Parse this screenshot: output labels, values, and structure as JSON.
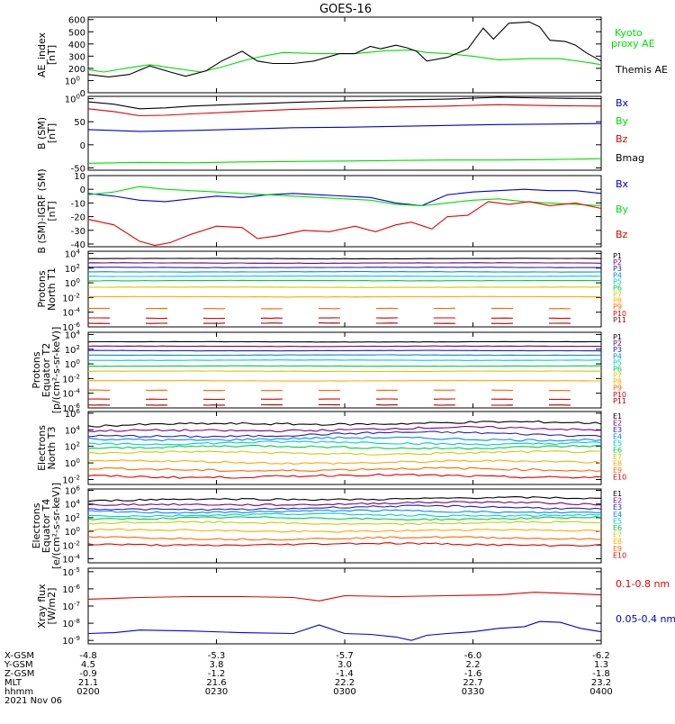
{
  "title": "GOES-16",
  "chart_data": [
    {
      "type": "line",
      "ylabel": "AE_index [nT]",
      "ylim": [
        0,
        620
      ],
      "yticks": [
        {
          "v": 0,
          "t": "0"
        },
        {
          "v": 100,
          "t": "100"
        },
        {
          "v": 200,
          "t": "200"
        },
        {
          "v": 300,
          "t": "300"
        },
        {
          "v": 400,
          "t": "400"
        },
        {
          "v": 500,
          "t": "500"
        },
        {
          "v": 600,
          "t": "600"
        }
      ],
      "series": [
        {
          "name": "Kyoto proxy AE",
          "color": "#00dd00",
          "x": [
            0,
            0.03,
            0.08,
            0.12,
            0.17,
            0.22,
            0.26,
            0.3,
            0.34,
            0.38,
            0.45,
            0.52,
            0.58,
            0.63,
            0.66,
            0.7,
            0.75,
            0.8,
            0.86,
            0.92,
            0.97,
            1.0
          ],
          "y": [
            190,
            170,
            205,
            230,
            200,
            170,
            210,
            260,
            300,
            330,
            320,
            320,
            345,
            350,
            330,
            320,
            300,
            270,
            280,
            280,
            250,
            230
          ]
        },
        {
          "name": "Themis AE",
          "color": "#000000",
          "x": [
            0,
            0.04,
            0.08,
            0.12,
            0.16,
            0.19,
            0.23,
            0.26,
            0.3,
            0.33,
            0.36,
            0.4,
            0.44,
            0.49,
            0.52,
            0.55,
            0.57,
            0.6,
            0.62,
            0.64,
            0.66,
            0.7,
            0.74,
            0.77,
            0.79,
            0.82,
            0.86,
            0.88,
            0.9,
            0.93,
            0.95,
            0.97,
            1.0
          ],
          "y": [
            150,
            130,
            150,
            220,
            170,
            135,
            180,
            260,
            340,
            260,
            240,
            240,
            260,
            320,
            320,
            380,
            360,
            390,
            370,
            340,
            260,
            290,
            360,
            530,
            440,
            570,
            580,
            540,
            430,
            420,
            390,
            330,
            260
          ]
        }
      ],
      "legend": [
        "Kyoto proxy AE",
        "Themis AE"
      ]
    },
    {
      "type": "line",
      "ylabel": "B (SM) [nT]",
      "ylim": [
        -55,
        105
      ],
      "yticks": [
        {
          "v": -50,
          "t": "-50"
        },
        {
          "v": 0,
          "t": "0"
        },
        {
          "v": 50,
          "t": "50"
        },
        {
          "v": 100,
          "t": "100"
        }
      ],
      "series": [
        {
          "name": "Bx",
          "color": "#0000cc",
          "x": [
            0,
            0.1,
            0.2,
            0.3,
            0.4,
            0.5,
            0.6,
            0.7,
            0.8,
            0.9,
            1.0
          ],
          "y": [
            33,
            29,
            31,
            34,
            37,
            38,
            40,
            42,
            44,
            45,
            46
          ]
        },
        {
          "name": "By",
          "color": "#00dd00",
          "x": [
            0,
            0.1,
            0.2,
            0.3,
            0.4,
            0.5,
            0.6,
            0.7,
            0.8,
            0.9,
            1.0
          ],
          "y": [
            -40,
            -38,
            -39,
            -37,
            -36,
            -35,
            -34,
            -33,
            -33,
            -32,
            -30
          ]
        },
        {
          "name": "Bz",
          "color": "#dd0000",
          "x": [
            0,
            0.05,
            0.1,
            0.15,
            0.2,
            0.3,
            0.4,
            0.5,
            0.6,
            0.7,
            0.8,
            0.9,
            1.0
          ],
          "y": [
            78,
            72,
            63,
            64,
            67,
            72,
            77,
            80,
            82,
            84,
            87,
            85,
            84
          ]
        },
        {
          "name": "Bmag",
          "color": "#000000",
          "x": [
            0,
            0.05,
            0.1,
            0.15,
            0.2,
            0.3,
            0.4,
            0.5,
            0.6,
            0.7,
            0.8,
            0.9,
            1.0
          ],
          "y": [
            93,
            88,
            78,
            80,
            84,
            88,
            92,
            95,
            97,
            99,
            103,
            101,
            100
          ]
        }
      ],
      "legend": [
        "Bx",
        "By",
        "Bz",
        "Bmag"
      ]
    },
    {
      "type": "line",
      "ylabel": "B (SM)-IGRF (SM) [nT]",
      "ylim": [
        -42,
        10
      ],
      "yticks": [
        {
          "v": -40,
          "t": "-40"
        },
        {
          "v": -30,
          "t": "-30"
        },
        {
          "v": -20,
          "t": "-20"
        },
        {
          "v": -10,
          "t": "-10"
        },
        {
          "v": 0,
          "t": "0"
        },
        {
          "v": 10,
          "t": "10"
        }
      ],
      "series": [
        {
          "name": "Bx",
          "color": "#0000cc",
          "x": [
            0,
            0.05,
            0.1,
            0.15,
            0.2,
            0.25,
            0.3,
            0.35,
            0.4,
            0.45,
            0.5,
            0.55,
            0.6,
            0.65,
            0.7,
            0.75,
            0.8,
            0.85,
            0.9,
            0.95,
            1.0
          ],
          "y": [
            -3,
            -5,
            -8,
            -9,
            -7,
            -5,
            -6,
            -4,
            -3,
            -4,
            -5,
            -6,
            -10,
            -12,
            -4,
            -2,
            -1,
            0,
            -1,
            -1,
            -3
          ]
        },
        {
          "name": "By",
          "color": "#00dd00",
          "x": [
            0,
            0.05,
            0.1,
            0.15,
            0.2,
            0.25,
            0.3,
            0.35,
            0.4,
            0.45,
            0.5,
            0.55,
            0.6,
            0.65,
            0.7,
            0.75,
            0.8,
            0.85,
            0.9,
            0.95,
            1.0
          ],
          "y": [
            -4,
            -2,
            2,
            0,
            -1,
            -2,
            -3,
            -4,
            -5,
            -6,
            -7,
            -8,
            -11,
            -12,
            -10,
            -8,
            -7,
            -9,
            -10,
            -11,
            -12
          ]
        },
        {
          "name": "Bz",
          "color": "#dd0000",
          "x": [
            0,
            0.05,
            0.1,
            0.13,
            0.16,
            0.2,
            0.25,
            0.3,
            0.33,
            0.37,
            0.42,
            0.47,
            0.52,
            0.56,
            0.6,
            0.63,
            0.67,
            0.7,
            0.74,
            0.78,
            0.82,
            0.86,
            0.9,
            0.95,
            1.0
          ],
          "y": [
            -22,
            -26,
            -38,
            -41,
            -39,
            -33,
            -27,
            -28,
            -36,
            -34,
            -30,
            -31,
            -27,
            -31,
            -26,
            -24,
            -29,
            -20,
            -19,
            -9,
            -11,
            -9,
            -12,
            -10,
            -14
          ]
        }
      ],
      "legend": [
        "Bx",
        "By",
        "Bz"
      ]
    },
    {
      "type": "line",
      "scale": "log",
      "ylabel": "Protons North T1",
      "ylim": [
        -6,
        4.3
      ],
      "yticks": [
        {
          "v": -6,
          "t": "10-6"
        },
        {
          "v": -4,
          "t": "10-4"
        },
        {
          "v": -2,
          "t": "10-2"
        },
        {
          "v": 0,
          "t": "100"
        },
        {
          "v": 2,
          "t": "102"
        },
        {
          "v": 4,
          "t": "104"
        }
      ],
      "channels": [
        "P1",
        "P2",
        "P3",
        "P4",
        "P5",
        "P6",
        "P7",
        "P8",
        "P9",
        "P10",
        "P11"
      ],
      "levels": [
        3.3,
        2.7,
        2.1,
        1.5,
        0.9,
        0.3,
        -0.6,
        -1.9,
        -3.5,
        -4.8,
        -5.5
      ],
      "legend": [
        "P1",
        "P2",
        "P3",
        "P4",
        "P5",
        "P6",
        "P7",
        "P8",
        "P9",
        "P10",
        "P11"
      ]
    },
    {
      "type": "line",
      "scale": "log",
      "ylabel": "Protons Equator T2",
      "ylim": [
        -6,
        4.3
      ],
      "yticks": [
        {
          "v": -6,
          "t": "10-6"
        },
        {
          "v": -4,
          "t": "10-4"
        },
        {
          "v": -2,
          "t": "10-2"
        },
        {
          "v": 0,
          "t": "100"
        },
        {
          "v": 2,
          "t": "102"
        },
        {
          "v": 4,
          "t": "104"
        }
      ],
      "channels": [
        "P1",
        "P2",
        "P3",
        "P4",
        "P5",
        "P6",
        "P7",
        "P8",
        "P9",
        "P10",
        "P11"
      ],
      "levels": [
        3.0,
        2.4,
        1.8,
        1.2,
        0.5,
        -0.3,
        -1.0,
        -2.3,
        -3.6,
        -4.8,
        -5.6
      ],
      "legend": [
        "P1",
        "P2",
        "P3",
        "P4",
        "P5",
        "P6",
        "P7",
        "P8",
        "P9",
        "P10",
        "P11"
      ]
    },
    {
      "type": "line",
      "scale": "log",
      "ylabel": "Electrons North T3",
      "ylim": [
        -2.6,
        6.2
      ],
      "yticks": [
        {
          "v": -2,
          "t": "10-2"
        },
        {
          "v": 0,
          "t": "100"
        },
        {
          "v": 2,
          "t": "102"
        },
        {
          "v": 4,
          "t": "104"
        },
        {
          "v": 6,
          "t": "106"
        }
      ],
      "channels": [
        "E1",
        "E2",
        "E3",
        "E4",
        "E5",
        "E6",
        "E7",
        "E8",
        "E9",
        "E10"
      ],
      "levels": [
        4.6,
        3.9,
        3.3,
        2.9,
        2.4,
        1.9,
        1.2,
        0.1,
        -0.8,
        -1.6
      ],
      "legend": [
        "E1",
        "E2",
        "E3",
        "E4",
        "E5",
        "E6",
        "E7",
        "E8",
        "E9",
        "E10"
      ]
    },
    {
      "type": "line",
      "scale": "log",
      "ylabel": "Electrons Equator T4",
      "ylim": [
        -4.6,
        6.2
      ],
      "yticks": [
        {
          "v": -4,
          "t": "10-4"
        },
        {
          "v": -2,
          "t": "10-2"
        },
        {
          "v": 0,
          "t": "100"
        },
        {
          "v": 2,
          "t": "102"
        },
        {
          "v": 4,
          "t": "104"
        },
        {
          "v": 6,
          "t": "106"
        }
      ],
      "channels": [
        "E1",
        "E2",
        "E3",
        "E4",
        "E5",
        "E6",
        "E7",
        "E8",
        "E9",
        "E10"
      ],
      "levels": [
        4.6,
        3.9,
        3.3,
        2.9,
        2.4,
        1.9,
        1.2,
        0.1,
        -1.0,
        -1.9
      ],
      "legend": [
        "E1",
        "E2",
        "E3",
        "E4",
        "E5",
        "E6",
        "E7",
        "E8",
        "E9",
        "E10"
      ]
    },
    {
      "type": "line",
      "scale": "log",
      "ylabel": "Xray flux [W/m2]",
      "ylim": [
        -9.2,
        -4.8
      ],
      "yticks": [
        {
          "v": -9,
          "t": "10-9"
        },
        {
          "v": -8,
          "t": "10-8"
        },
        {
          "v": -7,
          "t": "10-7"
        },
        {
          "v": -6,
          "t": "10-6"
        },
        {
          "v": -5,
          "t": "10-5"
        }
      ],
      "series": [
        {
          "name": "0.1-0.8 nm",
          "color": "#dd0000",
          "x": [
            0,
            0.1,
            0.2,
            0.3,
            0.4,
            0.45,
            0.5,
            0.6,
            0.7,
            0.8,
            0.87,
            0.92,
            1.0
          ],
          "y": [
            -6.6,
            -6.5,
            -6.45,
            -6.45,
            -6.5,
            -6.7,
            -6.4,
            -6.45,
            -6.4,
            -6.35,
            -6.2,
            -6.25,
            -6.35
          ]
        },
        {
          "name": "0.05-0.4 nm",
          "color": "#0000cc",
          "x": [
            0,
            0.05,
            0.1,
            0.2,
            0.3,
            0.4,
            0.45,
            0.5,
            0.55,
            0.6,
            0.63,
            0.66,
            0.7,
            0.75,
            0.8,
            0.85,
            0.88,
            0.92,
            0.96,
            1.0
          ],
          "y": [
            -8.6,
            -8.55,
            -8.4,
            -8.45,
            -8.55,
            -8.6,
            -8.1,
            -8.6,
            -8.65,
            -8.8,
            -9.0,
            -8.7,
            -8.6,
            -8.5,
            -8.3,
            -8.2,
            -7.9,
            -7.95,
            -8.3,
            -8.5
          ]
        }
      ],
      "legend": [
        "0.1-0.8 nm",
        "0.05-0.4 nm"
      ]
    }
  ],
  "x_axis": {
    "row_labels": [
      "X-GSM",
      "Y-GSM",
      "Z-GSM",
      "MLT",
      "hhmm"
    ],
    "ticks": [
      {
        "pos": 0.0,
        "values": [
          "-4.8",
          "4.5",
          "-0.9",
          "21.1",
          "0200"
        ]
      },
      {
        "pos": 0.25,
        "values": [
          "-5.3",
          "3.8",
          "-1.2",
          "21.6",
          "0230"
        ]
      },
      {
        "pos": 0.5,
        "values": [
          "-5.7",
          "3.0",
          "-1.4",
          "22.2",
          "0300"
        ]
      },
      {
        "pos": 0.75,
        "values": [
          "-6.0",
          "2.2",
          "-1.6",
          "22.7",
          "0330"
        ]
      },
      {
        "pos": 1.0,
        "values": [
          "-6.2",
          "1.3",
          "-1.8",
          "23.2",
          "0400"
        ]
      }
    ],
    "date": "2021 Nov 06"
  },
  "panel_labels": {
    "p1": [
      "AE_index",
      "[nT]"
    ],
    "p2": [
      "B (SM)",
      "[nT]"
    ],
    "p3": [
      "B (SM)-IGRF (SM)",
      "[nT]"
    ],
    "p4": [
      "Protons",
      "North T1"
    ],
    "p5": [
      "Protons",
      "Equator T2",
      "[p/(cm²-s-sr-keV)]"
    ],
    "p6": [
      "Electrons",
      "North T3"
    ],
    "p7": [
      "Electrons",
      "Equator T4",
      "[e/(cm²-s-sr-keV)]"
    ],
    "p8": [
      "Xray flux",
      "[W/m2]"
    ]
  },
  "legend_text": {
    "kyoto": [
      "Kyoto",
      "proxy AE"
    ],
    "themis": "Themis AE"
  },
  "channel_colors": {
    "P": [
      "#000000",
      "#7a007a",
      "#2020c0",
      "#0088ff",
      "#00cccc",
      "#00cc44",
      "#cccc00",
      "#ffaa00",
      "#ff6600",
      "#dd0000",
      "#aa0000"
    ],
    "E": [
      "#000000",
      "#7a007a",
      "#2020c0",
      "#0088ff",
      "#00cccc",
      "#00cc44",
      "#cccc00",
      "#ffaa00",
      "#ff6600",
      "#dd0000"
    ]
  }
}
